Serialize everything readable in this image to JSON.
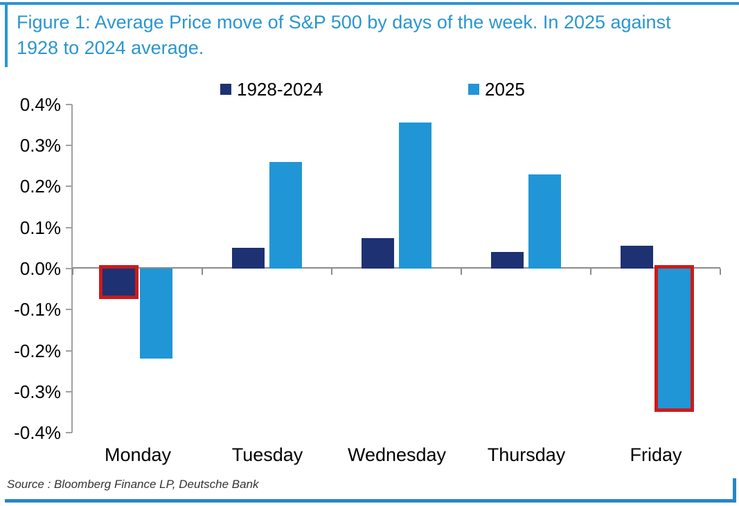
{
  "title": {
    "full_text": "Figure 1: Average Price move of S&P 500 by days of the week. In 2025 against 1928 to 2024 average.",
    "lines": [
      "Figure 1: Average Price move of S&P 500 by days of the week. In 2025 against",
      "1928 to 2024 average."
    ]
  },
  "chart_data": {
    "type": "bar",
    "title": "Average Price move of S&P 500 by days of the week. In 2025 against 1928 to 2024 average.",
    "xlabel": "",
    "ylabel": "",
    "categories": [
      "Monday",
      "Tuesday",
      "Wednesday",
      "Thursday",
      "Friday"
    ],
    "series": [
      {
        "name": "1928-2024",
        "color": "#1E3173",
        "values": [
          -0.065,
          0.05,
          0.075,
          0.04,
          0.055
        ]
      },
      {
        "name": "2025",
        "color": "#2196D6",
        "values": [
          -0.22,
          0.26,
          0.355,
          0.23,
          -0.34
        ]
      }
    ],
    "value_unit": "percent",
    "ylim": [
      -0.4,
      0.4
    ],
    "yticks": [
      0.4,
      0.3,
      0.2,
      0.1,
      0.0,
      -0.1,
      -0.2,
      -0.3,
      -0.4
    ],
    "ytick_labels": [
      "0.4%",
      "0.3%",
      "0.2%",
      "0.1%",
      "0.0%",
      "-0.1%",
      "-0.2%",
      "-0.3%",
      "-0.4%"
    ],
    "grid": false,
    "legend_position": "top",
    "highlights": [
      {
        "series": "1928-2024",
        "category": "Monday"
      },
      {
        "series": "2025",
        "category": "Friday"
      }
    ],
    "highlight_color": "#CC1A1A"
  },
  "source": {
    "text": "Source : Bloomberg Finance LP, Deutsche Bank"
  },
  "colors": {
    "accent_blue": "#2A96D0",
    "rule_blue": "#2786C6",
    "navy_series": "#1E3173",
    "light_blue_series": "#2196D6",
    "highlight_red": "#CC1A1A",
    "axis_gray": "#A0A0A0",
    "zero_line_gray": "#8C8C8C",
    "text_black": "#000000",
    "source_text_gray": "#333333"
  }
}
